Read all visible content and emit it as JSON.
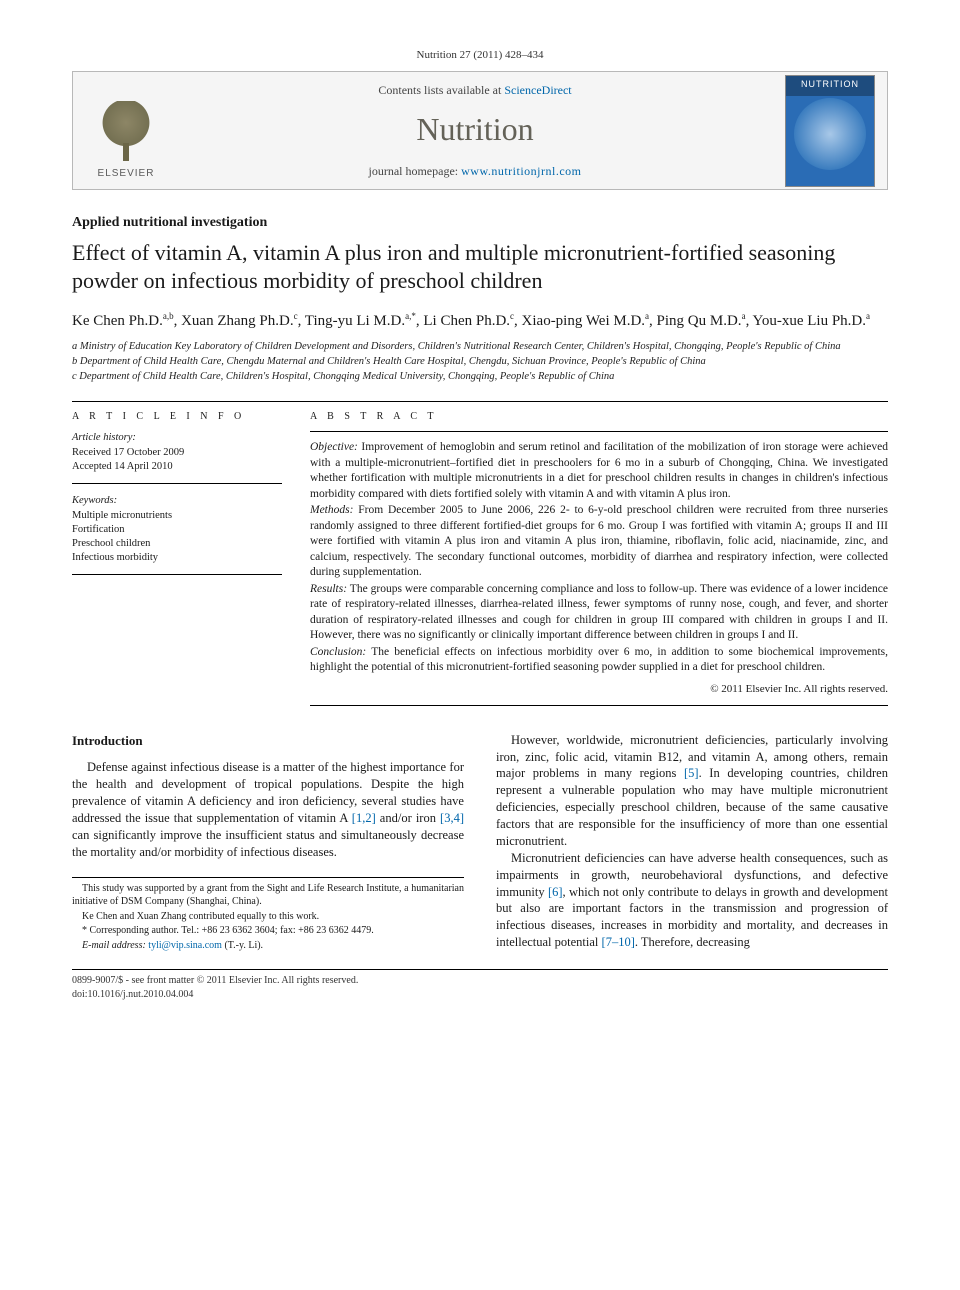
{
  "citation": "Nutrition 27 (2011) 428–434",
  "header": {
    "contents_prefix": "Contents lists available at ",
    "contents_link": "ScienceDirect",
    "journal_name": "Nutrition",
    "homepage_prefix": "journal homepage: ",
    "homepage_link": "www.nutritionjrnl.com",
    "elsevier_label": "ELSEVIER",
    "cover_label": "NUTRITION"
  },
  "article": {
    "type": "Applied nutritional investigation",
    "title": "Effect of vitamin A, vitamin A plus iron and multiple micronutrient-fortified seasoning powder on infectious morbidity of preschool children",
    "authors_html": "Ke Chen Ph.D.<sup>a,b</sup>, Xuan Zhang Ph.D.<sup>c</sup>, Ting-yu Li M.D.<sup>a,*</sup>, Li Chen Ph.D.<sup>c</sup>, Xiao-ping Wei M.D.<sup>a</sup>, Ping Qu M.D.<sup>a</sup>, You-xue Liu Ph.D.<sup>a</sup>",
    "affiliations": {
      "a": "a Ministry of Education Key Laboratory of Children Development and Disorders, Children's Nutritional Research Center, Children's Hospital, Chongqing, People's Republic of China",
      "b": "b Department of Child Health Care, Chengdu Maternal and Children's Health Care Hospital, Chengdu, Sichuan Province, People's Republic of China",
      "c": "c Department of Child Health Care, Children's Hospital, Chongqing Medical University, Chongqing, People's Republic of China"
    }
  },
  "info": {
    "heading": "A R T I C L E   I N F O",
    "history_head": "Article history:",
    "received": "Received 17 October 2009",
    "accepted": "Accepted 14 April 2010",
    "keywords_head": "Keywords:",
    "keywords": [
      "Multiple micronutrients",
      "Fortification",
      "Preschool children",
      "Infectious morbidity"
    ]
  },
  "abstract": {
    "heading": "A B S T R A C T",
    "objective_label": "Objective:",
    "objective": "Improvement of hemoglobin and serum retinol and facilitation of the mobilization of iron storage were achieved with a multiple-micronutrient–fortified diet in preschoolers for 6 mo in a suburb of Chongqing, China. We investigated whether fortification with multiple micronutrients in a diet for preschool children results in changes in children's infectious morbidity compared with diets fortified solely with vitamin A and with vitamin A plus iron.",
    "methods_label": "Methods:",
    "methods": "From December 2005 to June 2006, 226 2- to 6-y-old preschool children were recruited from three nurseries randomly assigned to three different fortified-diet groups for 6 mo. Group I was fortified with vitamin A; groups II and III were fortified with vitamin A plus iron and vitamin A plus iron, thiamine, riboflavin, folic acid, niacinamide, zinc, and calcium, respectively. The secondary functional outcomes, morbidity of diarrhea and respiratory infection, were collected during supplementation.",
    "results_label": "Results:",
    "results": "The groups were comparable concerning compliance and loss to follow-up. There was evidence of a lower incidence rate of respiratory-related illnesses, diarrhea-related illness, fewer symptoms of runny nose, cough, and fever, and shorter duration of respiratory-related illnesses and cough for children in group III compared with children in groups I and II. However, there was no significantly or clinically important difference between children in groups I and II.",
    "conclusion_label": "Conclusion:",
    "conclusion": "The beneficial effects on infectious morbidity over 6 mo, in addition to some biochemical improvements, highlight the potential of this micronutrient-fortified seasoning powder supplied in a diet for preschool children.",
    "copyright": "© 2011 Elsevier Inc. All rights reserved."
  },
  "body": {
    "intro_head": "Introduction",
    "col1_p1a": "Defense against infectious disease is a matter of the highest importance for the health and development of tropical populations. Despite the high prevalence of vitamin A deficiency and iron deficiency, several studies have addressed the issue that supplementation of vitamin A ",
    "col1_ref1": "[1,2]",
    "col1_p1b": " and/or iron ",
    "col1_ref2": "[3,4]",
    "col1_p1c": " can significantly improve the insufficient status and simultaneously decrease the mortality and/or morbidity of infectious diseases.",
    "col2_p1a": "However, worldwide, micronutrient deficiencies, particularly involving iron, zinc, folic acid, vitamin B12, and vitamin A, among others, remain major problems in many regions ",
    "col2_ref1": "[5]",
    "col2_p1b": ". In developing countries, children represent a vulnerable population who may have multiple micronutrient deficiencies, especially preschool children, because of the same causative factors that are responsible for the insufficiency of more than one essential micronutrient.",
    "col2_p2a": "Micronutrient deficiencies can have adverse health consequences, such as impairments in growth, neurobehavioral dysfunctions, and defective immunity ",
    "col2_ref2": "[6]",
    "col2_p2b": ", which not only contribute to delays in growth and development but also are important factors in the transmission and progression of infectious diseases, increases in morbidity and mortality, and decreases in intellectual potential ",
    "col2_ref3": "[7–10]",
    "col2_p2c": ". Therefore, decreasing"
  },
  "footnotes": {
    "f1": "This study was supported by a grant from the Sight and Life Research Institute, a humanitarian initiative of DSM Company (Shanghai, China).",
    "f2": "Ke Chen and Xuan Zhang contributed equally to this work.",
    "f3": "* Corresponding author. Tel.: +86 23 6362 3604; fax: +86 23 6362 4479.",
    "f4_label": "E-mail address: ",
    "f4_email": "tyli@vip.sina.com",
    "f4_tail": " (T.-y. Li)."
  },
  "footer": {
    "line1": "0899-9007/$ - see front matter © 2011 Elsevier Inc. All rights reserved.",
    "line2": "doi:10.1016/j.nut.2010.04.004"
  },
  "colors": {
    "link": "#0066aa",
    "journal_name": "#646258",
    "box_bg": "#f5f5f5",
    "box_border": "#b8b8b8"
  }
}
